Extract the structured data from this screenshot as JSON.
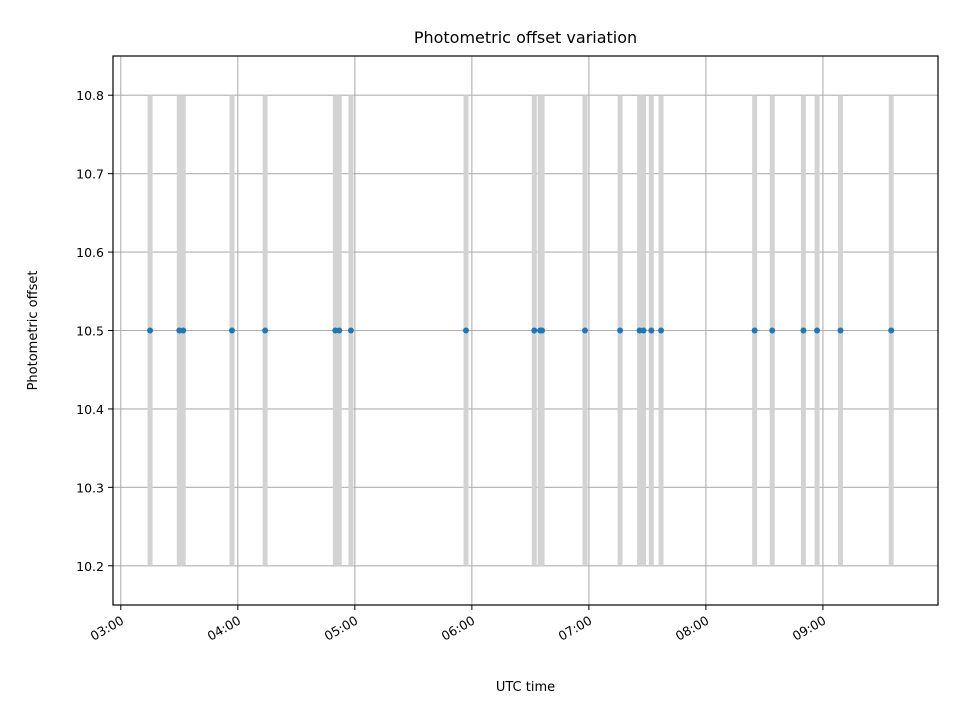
{
  "chart_data": {
    "type": "scatter",
    "title": "Photometric offset variation",
    "xlabel": "UTC time",
    "ylabel": "Photometric offset",
    "x_is_time": true,
    "xlim": [
      "02:56",
      "09:59"
    ],
    "ylim": [
      10.15,
      10.85
    ],
    "x_ticks": [
      "03:00",
      "04:00",
      "05:00",
      "06:00",
      "07:00",
      "08:00",
      "09:00"
    ],
    "y_ticks": [
      10.2,
      10.3,
      10.4,
      10.5,
      10.6,
      10.7,
      10.8
    ],
    "grid": true,
    "colors": {
      "points": "#1f77b4",
      "error_bars": "#d3d3d3",
      "grid": "#b0b0b0"
    },
    "error": 0.3,
    "series": [
      {
        "x": [
          "03:15",
          "03:30",
          "03:32",
          "03:57",
          "04:14",
          "04:50",
          "04:52",
          "04:58",
          "05:57",
          "06:32",
          "06:35",
          "06:36",
          "06:58",
          "07:16",
          "07:26",
          "07:28",
          "07:32",
          "07:37",
          "08:25",
          "08:34",
          "08:50",
          "08:57",
          "09:09",
          "09:35"
        ],
        "y": [
          10.5,
          10.5,
          10.5,
          10.5,
          10.5,
          10.5,
          10.5,
          10.5,
          10.5,
          10.5,
          10.5,
          10.5,
          10.5,
          10.5,
          10.5,
          10.5,
          10.5,
          10.5,
          10.5,
          10.5,
          10.5,
          10.5,
          10.5,
          10.5
        ]
      }
    ]
  }
}
